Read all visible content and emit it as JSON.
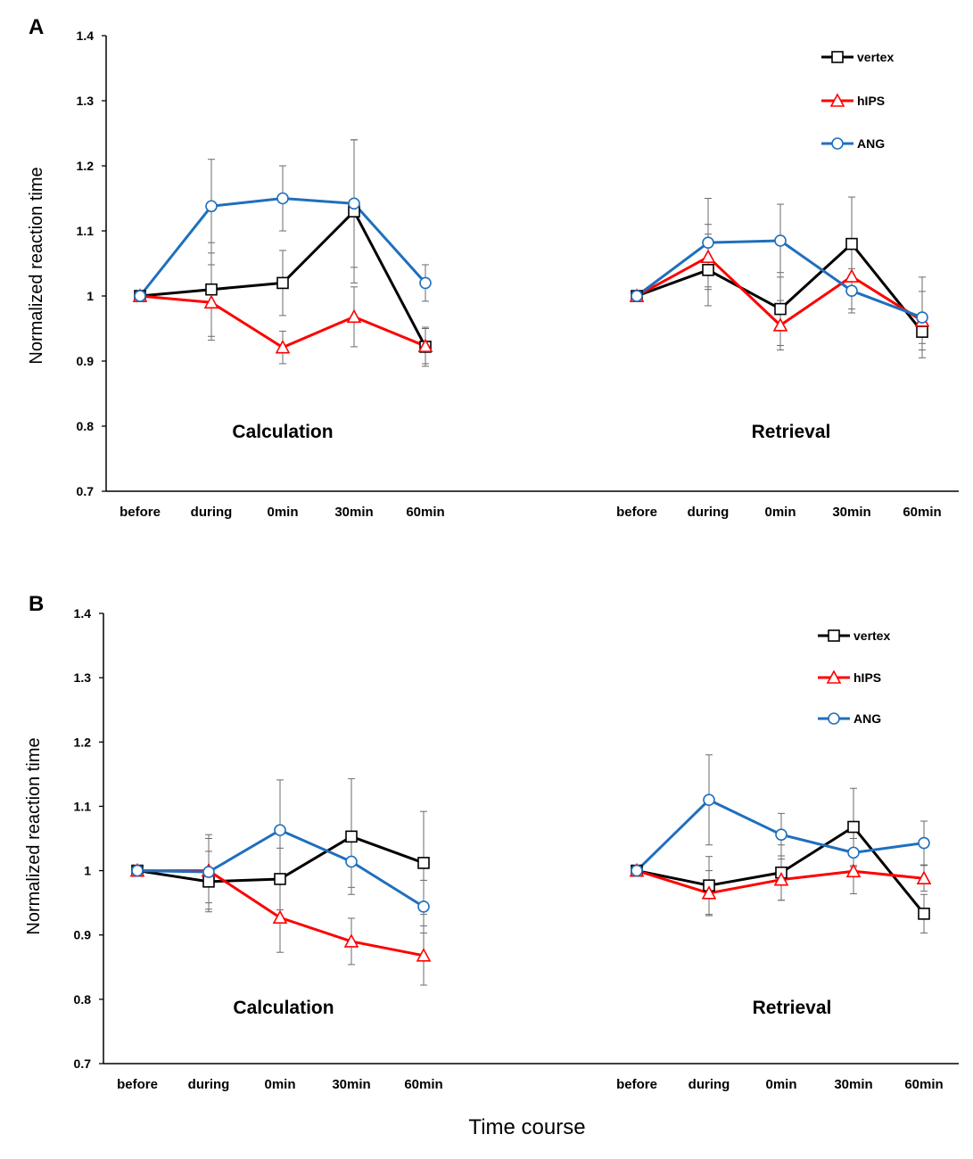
{
  "shared_xlabel": "Time course",
  "chart_data": [
    {
      "panel": "A",
      "type": "line",
      "ylabel": "Normalized reaction  time",
      "ylim": [
        0.7,
        1.4
      ],
      "yticks": [
        "0.7",
        "0.8",
        "0.9",
        "1",
        "1.1",
        "1.2",
        "1.3",
        "1.4"
      ],
      "legend_position": "top-right",
      "groups": [
        {
          "label": "Calculation",
          "categories": [
            "before",
            "during",
            "0min",
            "30min",
            "60min"
          ],
          "series": [
            {
              "name": "vertex",
              "color": "#000000",
              "marker": "square",
              "values": [
                1.0,
                1.01,
                1.02,
                1.13,
                0.922
              ],
              "errors": [
                0,
                0.072,
                0.05,
                0.11,
                0.03
              ]
            },
            {
              "name": "hIPS",
              "color": "#ff0000",
              "marker": "triangle",
              "values": [
                1.0,
                0.99,
                0.921,
                0.968,
                0.923
              ],
              "errors": [
                0,
                0.058,
                0.025,
                0.046,
                0.027
              ]
            },
            {
              "name": "ANG",
              "color": "#1f6fbd",
              "marker": "circle",
              "values": [
                1.0,
                1.138,
                1.15,
                1.142,
                1.02
              ],
              "errors": [
                0,
                0.072,
                0.05,
                0.098,
                0.028
              ]
            }
          ]
        },
        {
          "label": "Retrieval",
          "categories": [
            "before",
            "during",
            "0min",
            "30min",
            "60min"
          ],
          "series": [
            {
              "name": "vertex",
              "color": "#000000",
              "marker": "square",
              "values": [
                1.0,
                1.04,
                0.98,
                1.08,
                0.945
              ],
              "errors": [
                0,
                0.055,
                0.056,
                0.072,
                0.018
              ]
            },
            {
              "name": "hIPS",
              "color": "#ff0000",
              "marker": "triangle",
              "values": [
                1.0,
                1.06,
                0.955,
                1.03,
                0.962
              ],
              "errors": [
                0,
                0.05,
                0.038,
                0.05,
                0.045
              ]
            },
            {
              "name": "ANG",
              "color": "#1f6fbd",
              "marker": "circle",
              "values": [
                1.0,
                1.082,
                1.085,
                1.008,
                0.967
              ],
              "errors": [
                0,
                0.068,
                0.056,
                0.034,
                0.062
              ]
            }
          ]
        }
      ]
    },
    {
      "panel": "B",
      "type": "line",
      "ylabel": "Normalized reaction time",
      "ylim": [
        0.7,
        1.4
      ],
      "yticks": [
        "0.7",
        "0.8",
        "0.9",
        "1",
        "1.1",
        "1.2",
        "1.3",
        "1.4"
      ],
      "legend_position": "top-right",
      "groups": [
        {
          "label": "Calculation",
          "categories": [
            "before",
            "during",
            "0min",
            "30min",
            "60min"
          ],
          "series": [
            {
              "name": "vertex",
              "color": "#000000",
              "marker": "square",
              "values": [
                1.0,
                0.983,
                0.987,
                1.053,
                1.012
              ],
              "errors": [
                0,
                0.047,
                0.048,
                0.09,
                0.08
              ]
            },
            {
              "name": "hIPS",
              "color": "#ff0000",
              "marker": "triangle",
              "values": [
                1.0,
                1.0,
                0.927,
                0.89,
                0.868
              ],
              "errors": [
                0,
                0.05,
                0.054,
                0.036,
                0.046
              ]
            },
            {
              "name": "ANG",
              "color": "#1f6fbd",
              "marker": "circle",
              "values": [
                1.0,
                0.998,
                1.063,
                1.014,
                0.944
              ],
              "errors": [
                0,
                0.058,
                0.078,
                0.04,
                0.041
              ]
            }
          ]
        },
        {
          "label": "Retrieval",
          "categories": [
            "before",
            "during",
            "0min",
            "30min",
            "60min"
          ],
          "series": [
            {
              "name": "vertex",
              "color": "#000000",
              "marker": "square",
              "values": [
                1.0,
                0.977,
                0.997,
                1.068,
                0.933
              ],
              "errors": [
                0,
                0.045,
                0.043,
                0.06,
                0.03
              ]
            },
            {
              "name": "hIPS",
              "color": "#ff0000",
              "marker": "triangle",
              "values": [
                1.0,
                0.965,
                0.986,
                0.999,
                0.988
              ],
              "errors": [
                0,
                0.035,
                0.032,
                0.035,
                0.02
              ]
            },
            {
              "name": "ANG",
              "color": "#1f6fbd",
              "marker": "circle",
              "values": [
                1.0,
                1.11,
                1.056,
                1.028,
                1.043
              ],
              "errors": [
                0,
                0.07,
                0.033,
                0.022,
                0.034
              ]
            }
          ]
        }
      ]
    }
  ]
}
